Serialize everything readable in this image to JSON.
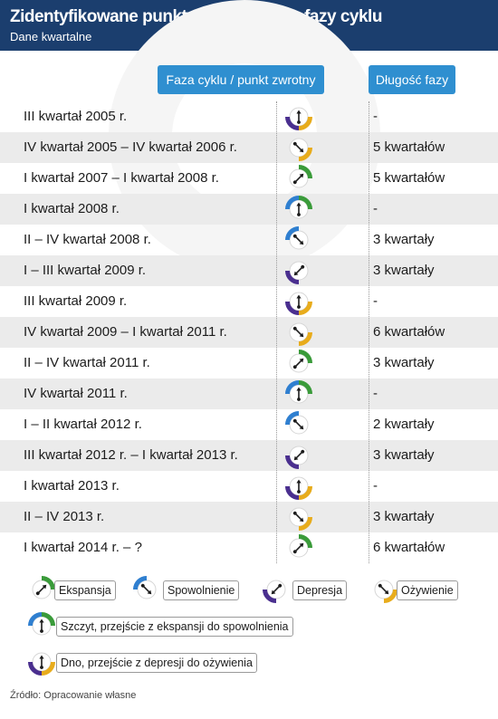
{
  "header": {
    "title": "Zidentyfikowane punkty zwrotne oraz fazy cyklu",
    "subtitle": "Dane kwartalne"
  },
  "columns": {
    "phase": "Faza cyklu / punkt zwrotny",
    "length": "Długość fazy"
  },
  "colors": {
    "header_bg": "#1b3e6e",
    "column_header_bg": "#2f8fd0",
    "ekspansja": "#3a9b3a",
    "spowolnienie": "#2f7fd0",
    "depresja": "#4a2f8f",
    "ozywienie": "#e8ac1c",
    "row_shade": "#ebebeb"
  },
  "rows": [
    {
      "period": "III kwartał 2005 r.",
      "phase": "dno",
      "length": "-"
    },
    {
      "period": "IV kwartał 2005 – IV kwartał 2006 r.",
      "phase": "ozywienie",
      "length": "5 kwartałów"
    },
    {
      "period": "I kwartał  2007 – I kwartał  2008 r.",
      "phase": "ekspansja",
      "length": "5 kwartałów"
    },
    {
      "period": "I kwartał 2008 r.",
      "phase": "szczyt",
      "length": "-"
    },
    {
      "period": "II – IV kwartał  2008 r.",
      "phase": "spowolnienie",
      "length": "3 kwartały"
    },
    {
      "period": "I – III kwartał  2009 r.",
      "phase": "depresja",
      "length": "3 kwartały"
    },
    {
      "period": "III kwartał  2009 r.",
      "phase": "dno",
      "length": "-"
    },
    {
      "period": "IV kwartał 2009 – I kwartał 2011 r.",
      "phase": "ozywienie",
      "length": "6 kwartałów"
    },
    {
      "period": "II – IV kwartał 2011 r.",
      "phase": "ekspansja",
      "length": "3 kwartały"
    },
    {
      "period": "IV kwartał 2011 r.",
      "phase": "szczyt",
      "length": "-"
    },
    {
      "period": "I – II kwartał  2012 r.",
      "phase": "spowolnienie",
      "length": "2 kwartały"
    },
    {
      "period": "III kwartał 2012 r. – I kwartał 2013 r.",
      "phase": "depresja",
      "length": "3 kwartały"
    },
    {
      "period": "I kwartał 2013 r.",
      "phase": "dno",
      "length": "-"
    },
    {
      "period": "II – IV 2013 r.",
      "phase": "ozywienie",
      "length": "3 kwartały"
    },
    {
      "period": "I kwartał  2014 r. – ?",
      "phase": "ekspansja",
      "length": "6 kwartałów"
    }
  ],
  "legend": {
    "ekspansja": "Ekspansja",
    "spowolnienie": "Spowolnienie",
    "depresja": "Depresja",
    "ozywienie": "Ożywienie",
    "szczyt": "Szczyt, przejście z ekspansji do spowolnienia",
    "dno": "Dno, przejście z depresji do ożywienia"
  },
  "source": "Źródło: Opracowanie własne"
}
